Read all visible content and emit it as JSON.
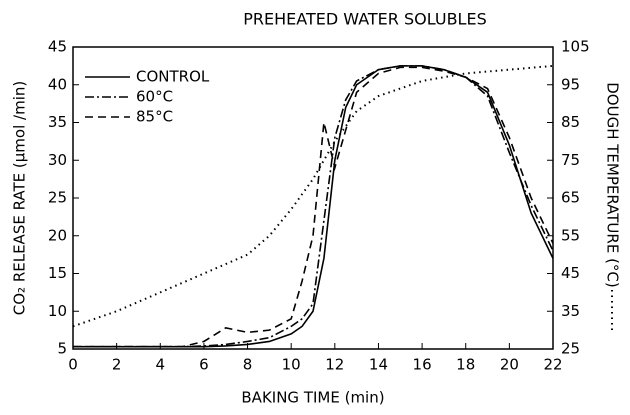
{
  "chart_data": {
    "type": "line",
    "title": "PREHEATED WATER SOLUBLES",
    "xlabel": "BAKING TIME (min)",
    "ylabel": "CO₂ RELEASE RATE (μmol /min)",
    "y2label": "DOUGH TEMPERATURE (°C)",
    "x": [
      0,
      1,
      2,
      3,
      4,
      5,
      6,
      7,
      8,
      9,
      10,
      10.5,
      11,
      11.5,
      12,
      12.5,
      13,
      14,
      15,
      16,
      17,
      18,
      19,
      20,
      21,
      22
    ],
    "series": [
      {
        "name": "CONTROL",
        "color": "#000000",
        "values": [
          5.3,
          5.3,
          5.3,
          5.3,
          5.3,
          5.3,
          5.3,
          5.4,
          5.6,
          6,
          7,
          8,
          10,
          17,
          30,
          37,
          40,
          42,
          42.5,
          42.5,
          42,
          41,
          39,
          32,
          23,
          17
        ]
      },
      {
        "name": "60°C",
        "color": "#000000",
        "values": [
          5.3,
          5.3,
          5.3,
          5.3,
          5.3,
          5.3,
          5.4,
          5.6,
          6,
          6.5,
          8,
          9,
          11,
          22,
          33,
          38,
          40.5,
          42,
          42.5,
          42.5,
          42,
          41,
          38.5,
          31,
          24,
          18
        ]
      },
      {
        "name": "85°C",
        "color": "#000000",
        "values": [
          5.3,
          5.3,
          5.3,
          5.3,
          5.3,
          5.3,
          6,
          7.8,
          7.2,
          7.5,
          9,
          14,
          20,
          35,
          29,
          34,
          39,
          41.5,
          42.3,
          42.3,
          41.8,
          41,
          39.5,
          33,
          25,
          19
        ]
      },
      {
        "axis": "y2",
        "color": "#000000",
        "values": [
          31,
          33,
          35,
          37.5,
          40,
          42.5,
          45,
          47.5,
          50,
          55,
          62,
          66,
          70,
          75,
          80,
          84,
          88,
          92,
          94,
          96,
          97,
          98,
          98.5,
          99,
          99.5,
          100
        ]
      }
    ],
    "xlim": [
      0,
      22
    ],
    "xticks": [
      0,
      2,
      4,
      6,
      8,
      10,
      12,
      14,
      16,
      18,
      20,
      22
    ],
    "ylim": [
      5,
      45
    ],
    "yticks": [
      5,
      10,
      15,
      20,
      25,
      30,
      35,
      40,
      45
    ],
    "y2lim": [
      25,
      105
    ],
    "y2ticks": [
      25,
      35,
      45,
      55,
      65,
      75,
      85,
      95,
      105
    ],
    "legend": "upper-left",
    "grid": false
  }
}
